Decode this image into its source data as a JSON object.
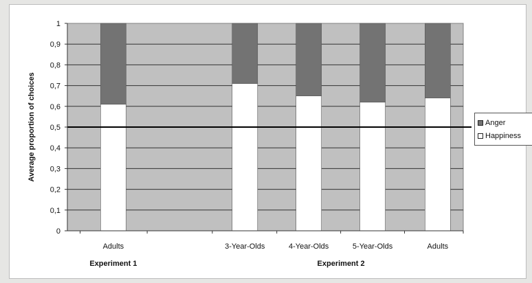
{
  "chart_data": {
    "type": "bar",
    "stacked": true,
    "categories": [
      "Adults",
      "",
      "3-Year-Olds",
      "4-Year-Olds",
      "5-Year-Olds",
      "Adults"
    ],
    "groups": [
      {
        "label": "Experiment 1",
        "categories": [
          "Adults"
        ]
      },
      {
        "label": "Experiment 2",
        "categories": [
          "3-Year-Olds",
          "4-Year-Olds",
          "5-Year-Olds",
          "Adults"
        ]
      }
    ],
    "series": [
      {
        "name": "Happiness",
        "color": "#ffffff",
        "values": [
          0.61,
          null,
          0.71,
          0.65,
          0.62,
          0.64
        ]
      },
      {
        "name": "Anger",
        "color": "#737373",
        "values": [
          0.39,
          null,
          0.29,
          0.35,
          0.38,
          0.36
        ]
      }
    ],
    "ylabel": "Average proportion of choices",
    "ylim": [
      0,
      1
    ],
    "yticks": [
      "0",
      "0,1",
      "0,2",
      "0,3",
      "0,4",
      "0,5",
      "0,6",
      "0,7",
      "0,8",
      "0,9",
      "1"
    ],
    "reference_line": 0.5,
    "grid": true,
    "legend_position": "right",
    "plot_background": "#c0c0c0"
  }
}
